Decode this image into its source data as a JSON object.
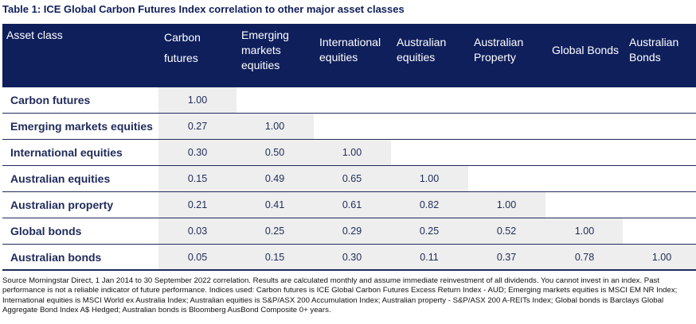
{
  "title": "Table 1: ICE Global Carbon Futures Index correlation to other major asset classes",
  "header": {
    "asset_class": "Asset class",
    "columns": [
      [
        "Carbon",
        "futures"
      ],
      [
        "Emerging",
        "markets",
        "equities"
      ],
      [
        "International",
        "equities"
      ],
      [
        "Australian",
        "equities"
      ],
      [
        "Australian",
        "Property"
      ],
      [
        "Global Bonds"
      ],
      [
        "Australian",
        "Bonds"
      ]
    ]
  },
  "rows": [
    {
      "label": "Carbon futures",
      "values": [
        "1.00"
      ]
    },
    {
      "label": "Emerging markets equities",
      "values": [
        "0.27",
        "1.00"
      ]
    },
    {
      "label": "International equities",
      "values": [
        "0.30",
        "0.50",
        "1.00"
      ]
    },
    {
      "label": "Australian equities",
      "values": [
        "0.15",
        "0.49",
        "0.65",
        "1.00"
      ]
    },
    {
      "label": "Australian property",
      "values": [
        "0.21",
        "0.41",
        "0.61",
        "0.82",
        "1.00"
      ]
    },
    {
      "label": "Global bonds",
      "values": [
        "0.03",
        "0.25",
        "0.29",
        "0.25",
        "0.52",
        "1.00"
      ]
    },
    {
      "label": "Australian bonds",
      "values": [
        "0.05",
        "0.15",
        "0.30",
        "0.11",
        "0.37",
        "0.78",
        "1.00"
      ]
    }
  ],
  "footnote": "Source Morningstar Direct, 1 Jan 2014 to 30 September 2022 correlation. Results are calculated monthly and assume immediate reinvestment of all dividends. You cannot invest in an index. Past performance is not a reliable indicator of future performance. Indices used: Carbon futures is ICE Global Carbon Futures Excess Return Index - AUD; Emerging markets equities is MSCI EM NR Index; International equities is MSCI World ex Australia Index; Australian equities is S&P/ASX 200 Accumulation Index; Australian property - S&P/ASX 200 A-REITs Index; Global bonds is Barclays Global Aggregate Bond Index A$ Hedged; Australian bonds is Bloomberg AusBond Composite 0+ years.",
  "colors": {
    "header_bg": "#0f1f5c",
    "shade": "#eeeeee",
    "text": "#1f2a5a"
  }
}
